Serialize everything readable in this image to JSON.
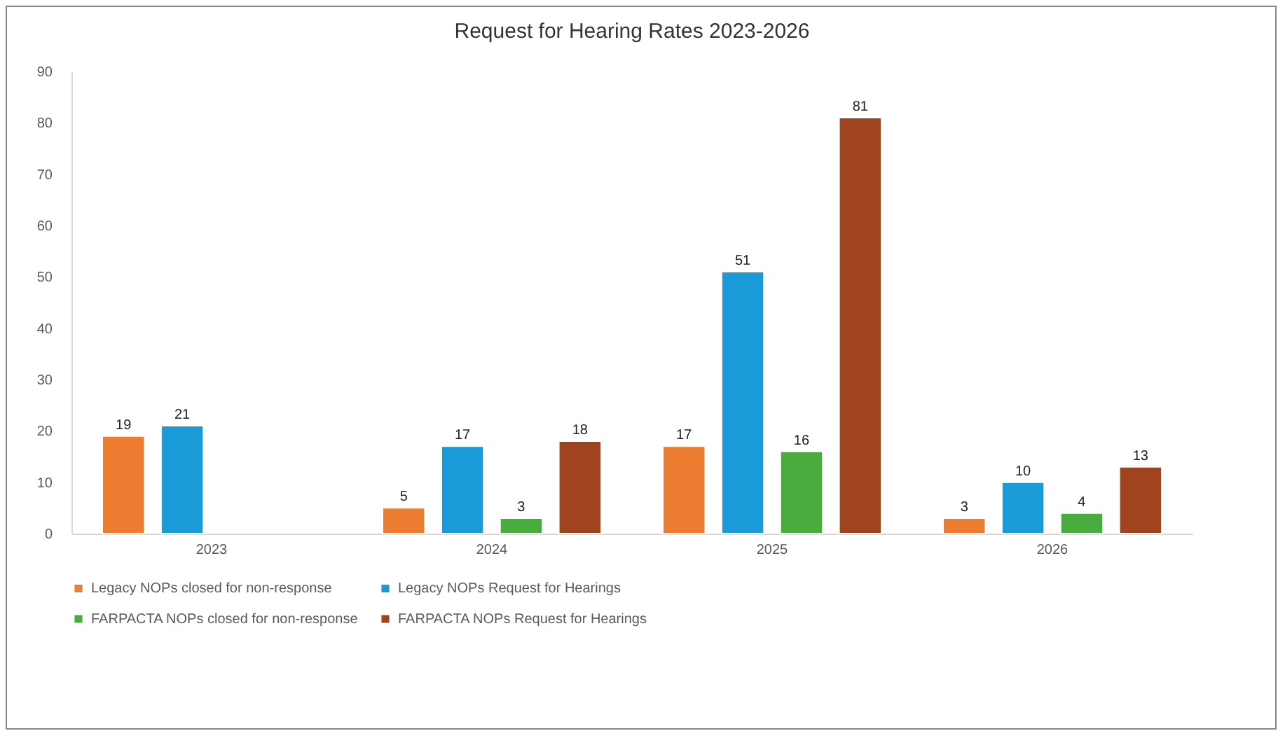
{
  "chart_data": {
    "type": "bar",
    "title": "Request for Hearing Rates 2023-2026",
    "categories": [
      "2023",
      "2024",
      "2025",
      "2026"
    ],
    "series": [
      {
        "name": "Legacy NOPs closed for non-response",
        "color": "#ed7d31",
        "values": [
          19,
          5,
          17,
          3
        ]
      },
      {
        "name": "Legacy NOPs Request for Hearings",
        "color": "#1a9ad6",
        "values": [
          21,
          17,
          51,
          10
        ]
      },
      {
        "name": "FARPACTA NOPs closed for non-response",
        "color": "#4aab3f",
        "values": [
          null,
          3,
          16,
          4
        ]
      },
      {
        "name": "FARPACTA NOPs Request for Hearings",
        "color": "#a0431f",
        "values": [
          null,
          18,
          81,
          13
        ]
      }
    ],
    "ylim": [
      0,
      90
    ],
    "yticks": [
      0,
      10,
      20,
      30,
      40,
      50,
      60,
      70,
      80,
      90
    ],
    "data_labels": true,
    "grid": false,
    "legend": "bottom"
  }
}
